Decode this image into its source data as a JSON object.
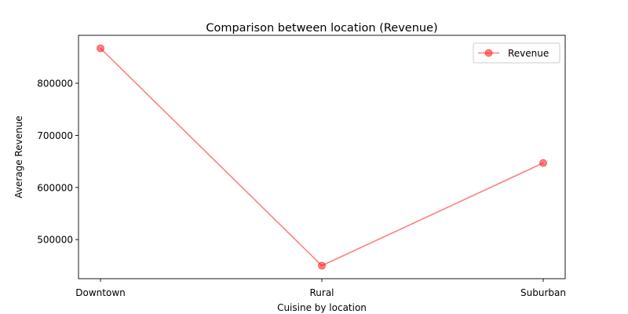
{
  "chart_data": {
    "type": "line",
    "title": "Comparison between location (Revenue)",
    "xlabel": "Cuisine by location",
    "ylabel": "Average Revenue",
    "categories": [
      "Downtown",
      "Rural",
      "Suburban"
    ],
    "series": [
      {
        "name": "Revenue",
        "values": [
          867000,
          450000,
          647000
        ],
        "color": "#ff0000",
        "opacity": 0.5,
        "marker": "circle"
      }
    ],
    "yticks": [
      500000,
      600000,
      700000,
      800000
    ],
    "ylim": [
      425000,
      892000
    ],
    "grid": false,
    "legend_position": "top-right"
  }
}
